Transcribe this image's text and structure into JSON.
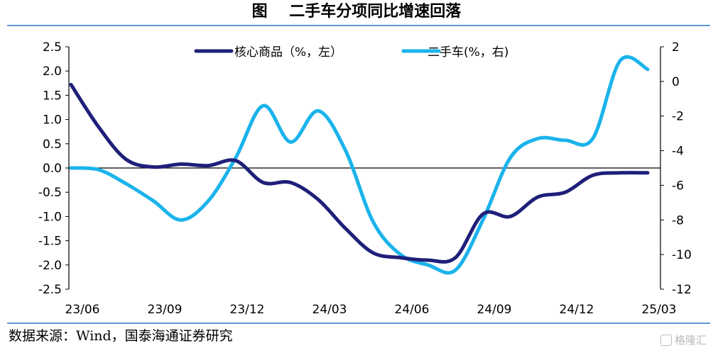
{
  "title": "图    二手车分项同比增速回落",
  "source": "数据来源：Wind，国泰海通证券研究",
  "watermark": "格隆汇",
  "chart_data": {
    "type": "line",
    "x_labels": [
      "23/06",
      "23/09",
      "23/12",
      "24/03",
      "24/06",
      "24/09",
      "24/12",
      "25/03"
    ],
    "x": [
      "23/06",
      "23/07",
      "23/08",
      "23/09",
      "23/10",
      "23/11",
      "23/12",
      "24/01",
      "24/02",
      "24/03",
      "24/04",
      "24/05",
      "24/06",
      "24/07",
      "24/08",
      "24/09",
      "24/10",
      "24/11",
      "24/12",
      "25/01",
      "25/02",
      "25/03"
    ],
    "left_axis": {
      "ylim": [
        -2.5,
        2.5
      ],
      "ticks": [
        "2.5",
        "2.0",
        "1.5",
        "1.0",
        "0.5",
        "0.0",
        "-0.5",
        "-1.0",
        "-1.5",
        "-2.0",
        "-2.5"
      ]
    },
    "right_axis": {
      "ylim": [
        -12,
        2
      ],
      "ticks": [
        "2",
        "0",
        "-2",
        "-4",
        "-6",
        "-8",
        "-10",
        "-12"
      ]
    },
    "series": [
      {
        "name": "核心商品（%，左）",
        "axis": "left",
        "color": "#1f1f7a",
        "values": [
          1.72,
          0.85,
          0.18,
          0.02,
          0.08,
          0.05,
          0.15,
          -0.3,
          -0.3,
          -0.65,
          -1.25,
          -1.75,
          -1.85,
          -1.9,
          -1.85,
          -0.95,
          -1.0,
          -0.6,
          -0.5,
          -0.15,
          -0.1,
          -0.1
        ]
      },
      {
        "name": "二手车(%，右)",
        "axis": "right",
        "color": "#1ab3eb",
        "values": [
          -5.0,
          -5.1,
          -5.9,
          -6.9,
          -8.0,
          -6.9,
          -4.4,
          -1.4,
          -3.5,
          -1.7,
          -4.0,
          -8.1,
          -10.0,
          -10.6,
          -10.9,
          -8.0,
          -4.4,
          -3.3,
          -3.4,
          -3.3,
          1.2,
          0.7
        ]
      }
    ]
  }
}
